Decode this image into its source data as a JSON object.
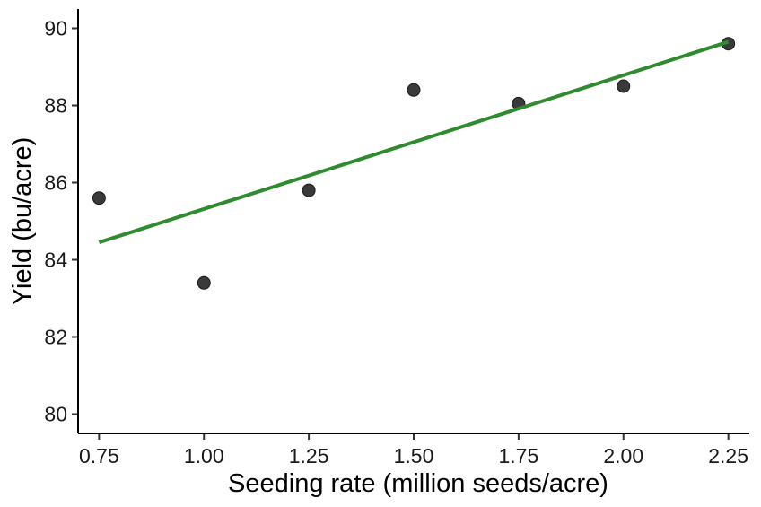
{
  "chart_data": {
    "type": "scatter",
    "title": "",
    "xlabel": "Seeding rate (million seeds/acre)",
    "ylabel": "Yield (bu/acre)",
    "xlim": [
      0.7,
      2.3
    ],
    "ylim": [
      79.5,
      90.5
    ],
    "x_ticks": [
      0.75,
      1.0,
      1.25,
      1.5,
      1.75,
      2.0,
      2.25
    ],
    "x_tick_labels": [
      "0.75",
      "1.00",
      "1.25",
      "1.50",
      "1.75",
      "2.00",
      "2.25"
    ],
    "y_ticks": [
      80,
      82,
      84,
      86,
      88,
      90
    ],
    "y_tick_labels": [
      "80",
      "82",
      "84",
      "86",
      "88",
      "90"
    ],
    "grid": false,
    "points": [
      {
        "x": 0.75,
        "y": 85.6
      },
      {
        "x": 1.0,
        "y": 83.4
      },
      {
        "x": 1.25,
        "y": 85.8
      },
      {
        "x": 1.5,
        "y": 88.4
      },
      {
        "x": 1.75,
        "y": 88.05
      },
      {
        "x": 2.0,
        "y": 88.5
      },
      {
        "x": 2.25,
        "y": 89.6
      }
    ],
    "trend_line": {
      "x": [
        0.75,
        2.25
      ],
      "y": [
        84.45,
        89.65
      ]
    },
    "point_color": "#3a3a3a",
    "line_color": "#2e8b2e"
  }
}
